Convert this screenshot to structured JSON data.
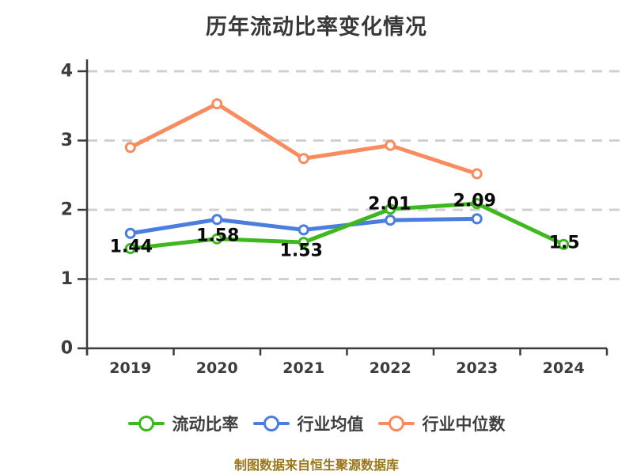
{
  "title": {
    "text": "历年流动比率变化情况"
  },
  "footer": {
    "note": "制图数据来自恒生聚源数据库"
  },
  "colors": {
    "series_current_ratio": "#3eb81e",
    "series_industry_average": "#4b7dde",
    "series_industry_median": "#f98c5f",
    "axis": "#3c3c3c",
    "grid": "#d0d0d0",
    "data_label": "#0a0a0a",
    "footer_text": "#9a7618",
    "background": "#ffffff"
  },
  "chart_data": {
    "type": "line",
    "title": "历年流动比率变化情况",
    "categories": [
      "2019",
      "2020",
      "2021",
      "2022",
      "2023",
      "2024"
    ],
    "series": [
      {
        "id": "current-ratio",
        "name": "流动比率",
        "color": "#3eb81e",
        "values": [
          1.44,
          1.58,
          1.53,
          2.01,
          2.09,
          1.5
        ],
        "labels": [
          "1.44",
          "1.58",
          "1.53",
          "2.01",
          "2.09",
          "1.5"
        ],
        "label_dx": [
          1,
          1,
          -3,
          -1,
          -3,
          1
        ],
        "label_dy": [
          -2,
          -4,
          11,
          -6,
          -3,
          -2
        ]
      },
      {
        "id": "industry-average",
        "name": "行业均值",
        "color": "#4b7dde",
        "values": [
          1.66,
          1.86,
          1.71,
          1.85,
          1.87,
          null
        ]
      },
      {
        "id": "industry-median",
        "name": "行业中位数",
        "color": "#f98c5f",
        "values": [
          2.9,
          3.53,
          2.74,
          2.93,
          2.52,
          null
        ]
      }
    ],
    "ylim": [
      0,
      4
    ],
    "yticks": [
      0,
      1,
      2,
      3,
      4
    ],
    "grid": "horizontal-dashed",
    "legend_position": "bottom",
    "marker": "open-circle"
  }
}
